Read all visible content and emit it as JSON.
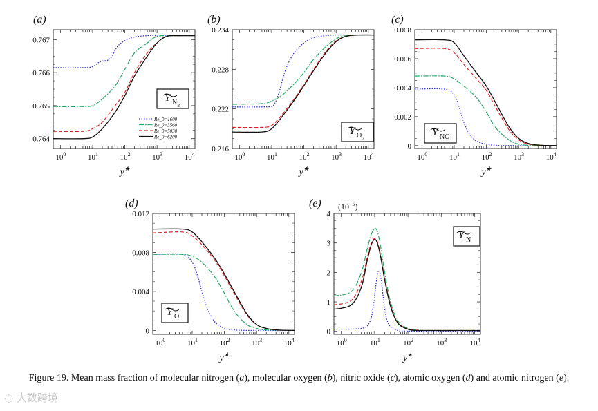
{
  "caption": {
    "prefix": "Figure 19.",
    "body_1": "Mean mass fraction of molecular nitrogen (",
    "a": "a",
    "body_2": "), molecular oxygen (",
    "b": "b",
    "body_3": "), nitric oxide (",
    "c": "c",
    "body_4": "), atomic oxygen (",
    "d": "d",
    "body_5": ") and atomic nitrogen (",
    "e": "e",
    "body_6": ")."
  },
  "watermark": "大数跨境",
  "colors": {
    "Re1600": "#3333dd",
    "Re3560": "#22aa66",
    "Re5030": "#dd2222",
    "Re6200": "#111111"
  },
  "chart_data": [
    {
      "id": "a",
      "panel_label": "(a)",
      "type": "line",
      "xscale": "log",
      "xlim": [
        0.6,
        15000
      ],
      "ylim": [
        0.7637,
        0.7673
      ],
      "xticks": [
        "10^0",
        "10^1",
        "10^2",
        "10^3",
        "10^4"
      ],
      "yticks": [
        0.764,
        0.765,
        0.766,
        0.767
      ],
      "ytick_labels": [
        "0.764",
        "0.765",
        "0.766",
        "0.767"
      ],
      "xlabel": "y*",
      "species_label": "Y_N2",
      "legend_entries": [
        "Re_0 = 1600",
        "Re_0 = 3560",
        "Re_0 = 5030",
        "Re_0 = 6200"
      ],
      "series": [
        {
          "name": "Re_0 = 1600",
          "style": "dotted",
          "x": [
            0.6,
            5,
            10,
            15,
            20,
            30,
            40,
            60,
            100,
            200,
            500,
            1000,
            15000
          ],
          "y": [
            0.76615,
            0.76615,
            0.76618,
            0.7663,
            0.76635,
            0.76638,
            0.7665,
            0.7668,
            0.76697,
            0.76708,
            0.76712,
            0.76712,
            0.76712
          ]
        },
        {
          "name": "Re_0 = 3560",
          "style": "dashdot",
          "x": [
            0.6,
            5,
            10,
            20,
            50,
            100,
            200,
            500,
            1000,
            3000,
            15000
          ],
          "y": [
            0.76497,
            0.76497,
            0.765,
            0.7652,
            0.7656,
            0.7661,
            0.7666,
            0.7669,
            0.7671,
            0.76712,
            0.76712
          ]
        },
        {
          "name": "Re_0 = 5030",
          "style": "dashed",
          "x": [
            0.6,
            5,
            10,
            20,
            50,
            100,
            200,
            500,
            1000,
            2000,
            5000,
            15000
          ],
          "y": [
            0.76422,
            0.76422,
            0.7643,
            0.7645,
            0.765,
            0.7654,
            0.766,
            0.7666,
            0.7669,
            0.7671,
            0.76712,
            0.76712
          ]
        },
        {
          "name": "Re_0 = 6200",
          "style": "solid",
          "x": [
            0.6,
            5,
            10,
            20,
            50,
            100,
            200,
            500,
            1000,
            2000,
            5000,
            15000
          ],
          "y": [
            0.764,
            0.764,
            0.76405,
            0.7643,
            0.7648,
            0.7653,
            0.7659,
            0.7665,
            0.7669,
            0.7671,
            0.76712,
            0.76712
          ]
        }
      ]
    },
    {
      "id": "b",
      "panel_label": "(b)",
      "type": "line",
      "xscale": "log",
      "xlim": [
        0.6,
        15000
      ],
      "ylim": [
        0.216,
        0.234
      ],
      "xticks": [
        "10^0",
        "10^1",
        "10^2",
        "10^3",
        "10^4"
      ],
      "yticks": [
        0.216,
        0.222,
        0.228,
        0.234
      ],
      "ytick_labels": [
        "0.216",
        "0.222",
        "0.228",
        "0.234"
      ],
      "xlabel": "y*",
      "species_label": "Y_O2",
      "series": [
        {
          "name": "Re_0 = 1600",
          "style": "dotted",
          "x": [
            0.6,
            5,
            10,
            13,
            17,
            22,
            30,
            50,
            100,
            200,
            500,
            1000,
            15000
          ],
          "y": [
            0.2223,
            0.2223,
            0.2224,
            0.223,
            0.2245,
            0.2265,
            0.2285,
            0.2305,
            0.232,
            0.2328,
            0.2331,
            0.2332,
            0.2332
          ]
        },
        {
          "name": "Re_0 = 3560",
          "style": "dashdot",
          "x": [
            0.6,
            5,
            10,
            20,
            50,
            100,
            200,
            500,
            1000,
            2000,
            15000
          ],
          "y": [
            0.2227,
            0.2228,
            0.2232,
            0.224,
            0.2258,
            0.2275,
            0.2295,
            0.2315,
            0.2326,
            0.2331,
            0.2332
          ]
        },
        {
          "name": "Re_0 = 5030",
          "style": "dashed",
          "x": [
            0.6,
            5,
            10,
            20,
            50,
            100,
            200,
            500,
            1000,
            2000,
            5000,
            15000
          ],
          "y": [
            0.2192,
            0.2192,
            0.2195,
            0.221,
            0.2235,
            0.2257,
            0.228,
            0.2308,
            0.2323,
            0.233,
            0.2332,
            0.2332
          ]
        },
        {
          "name": "Re_0 = 6200",
          "style": "solid",
          "x": [
            0.6,
            5,
            10,
            20,
            50,
            100,
            200,
            500,
            1000,
            2000,
            5000,
            15000
          ],
          "y": [
            0.2185,
            0.2185,
            0.219,
            0.2207,
            0.2233,
            0.2255,
            0.2278,
            0.2306,
            0.2322,
            0.233,
            0.2332,
            0.2332
          ]
        }
      ]
    },
    {
      "id": "c",
      "panel_label": "(c)",
      "type": "line",
      "xscale": "log",
      "xlim": [
        0.6,
        15000
      ],
      "ylim": [
        -0.0002,
        0.008
      ],
      "xticks": [
        "10^0",
        "10^1",
        "10^2",
        "10^3",
        "10^4"
      ],
      "yticks": [
        0,
        0.002,
        0.004,
        0.006,
        0.008
      ],
      "ytick_labels": [
        "0",
        "0.002",
        "0.004",
        "0.006",
        "0.008"
      ],
      "xlabel": "y*",
      "species_label": "Y_NO",
      "series": [
        {
          "name": "Re_0 = 1600",
          "style": "dotted",
          "x": [
            0.6,
            5,
            10,
            15,
            20,
            30,
            50,
            100,
            200,
            500,
            15000
          ],
          "y": [
            0.0039,
            0.0039,
            0.0035,
            0.0025,
            0.0016,
            0.0008,
            0.0003,
            8e-05,
            2e-05,
            0,
            0
          ]
        },
        {
          "name": "Re_0 = 3560",
          "style": "dashdot",
          "x": [
            0.6,
            5,
            10,
            20,
            50,
            100,
            200,
            500,
            1000,
            2000,
            15000
          ],
          "y": [
            0.0048,
            0.0048,
            0.0046,
            0.0041,
            0.0033,
            0.0023,
            0.0012,
            0.0004,
            0.0001,
            3e-05,
            0
          ]
        },
        {
          "name": "Re_0 = 5030",
          "style": "dashed",
          "x": [
            0.6,
            5,
            10,
            20,
            50,
            100,
            200,
            500,
            1000,
            2000,
            5000,
            15000
          ],
          "y": [
            0.0067,
            0.0067,
            0.0064,
            0.0056,
            0.0046,
            0.0038,
            0.0026,
            0.0011,
            0.0004,
            0.0001,
            2e-05,
            0
          ]
        },
        {
          "name": "Re_0 = 6200",
          "style": "solid",
          "x": [
            0.6,
            5,
            10,
            20,
            50,
            100,
            200,
            500,
            1000,
            2000,
            5000,
            15000
          ],
          "y": [
            0.0073,
            0.0073,
            0.0071,
            0.0062,
            0.005,
            0.0041,
            0.0029,
            0.0013,
            0.0005,
            0.00015,
            2e-05,
            0
          ]
        }
      ]
    },
    {
      "id": "d",
      "panel_label": "(d)",
      "type": "line",
      "xscale": "log",
      "xlim": [
        0.6,
        15000
      ],
      "ylim": [
        -0.0004,
        0.012
      ],
      "xticks": [
        "10^0",
        "10^1",
        "10^2",
        "10^3",
        "10^4"
      ],
      "yticks": [
        0,
        0.004,
        0.008,
        0.012
      ],
      "ytick_labels": [
        "0",
        "0.004",
        "0.008",
        "0.012"
      ],
      "xlabel": "y*",
      "species_label": "Y_O",
      "series": [
        {
          "name": "Re_0 = 1600",
          "style": "dotted",
          "x": [
            0.6,
            5,
            10,
            15,
            20,
            30,
            50,
            100,
            200,
            500,
            15000
          ],
          "y": [
            0.0078,
            0.0078,
            0.007,
            0.0055,
            0.004,
            0.0022,
            0.0009,
            0.0002,
            5e-05,
            0,
            0
          ]
        },
        {
          "name": "Re_0 = 3560",
          "style": "dashdot",
          "x": [
            0.6,
            5,
            10,
            20,
            50,
            100,
            200,
            500,
            1000,
            2000,
            15000
          ],
          "y": [
            0.0078,
            0.0078,
            0.0076,
            0.007,
            0.0055,
            0.0038,
            0.002,
            0.0006,
            0.0002,
            5e-05,
            0
          ]
        },
        {
          "name": "Re_0 = 5030",
          "style": "dashed",
          "x": [
            0.6,
            5,
            10,
            20,
            50,
            100,
            200,
            500,
            1000,
            2000,
            5000,
            15000
          ],
          "y": [
            0.01,
            0.0101,
            0.0097,
            0.0088,
            0.0072,
            0.0056,
            0.0038,
            0.0016,
            0.0006,
            0.0002,
            3e-05,
            0
          ]
        },
        {
          "name": "Re_0 = 6200",
          "style": "solid",
          "x": [
            0.6,
            5,
            10,
            20,
            50,
            100,
            200,
            500,
            1000,
            2000,
            5000,
            15000
          ],
          "y": [
            0.0104,
            0.0104,
            0.0101,
            0.0091,
            0.0074,
            0.0058,
            0.004,
            0.0017,
            0.0006,
            0.0002,
            3e-05,
            0
          ]
        }
      ]
    },
    {
      "id": "e",
      "panel_label": "(e)",
      "type": "line",
      "xscale": "log",
      "xlim": [
        0.6,
        15000
      ],
      "ylim": [
        -0.1,
        4
      ],
      "xticks": [
        "10^0",
        "10^1",
        "10^2",
        "10^3",
        "10^4"
      ],
      "yticks": [
        0,
        1,
        2,
        3,
        4
      ],
      "ytick_labels": [
        "0",
        "1",
        "2",
        "3",
        "4"
      ],
      "xlabel": "y*",
      "species_label": "Y_N",
      "multiplier": "(10^-5)",
      "series": [
        {
          "name": "Re_0 = 1600",
          "style": "dotted",
          "x": [
            0.6,
            4,
            7,
            9,
            11,
            13,
            15,
            18,
            22,
            30,
            50,
            100,
            15000
          ],
          "y": [
            0.07,
            0.1,
            0.3,
            0.8,
            1.6,
            2.05,
            1.9,
            1.2,
            0.5,
            0.15,
            0.03,
            0.01,
            0.01
          ]
        },
        {
          "name": "Re_0 = 3560",
          "style": "dashdot",
          "x": [
            0.6,
            2,
            4,
            6,
            8,
            10,
            12,
            15,
            20,
            30,
            50,
            100,
            200,
            500,
            15000
          ],
          "y": [
            1.2,
            1.35,
            2.0,
            2.8,
            3.3,
            3.48,
            3.4,
            2.9,
            2.0,
            1.0,
            0.35,
            0.1,
            0.04,
            0.03,
            0.03
          ]
        },
        {
          "name": "Re_0 = 5030",
          "style": "dashed",
          "x": [
            0.6,
            2,
            4,
            6,
            8,
            10,
            12,
            15,
            20,
            30,
            50,
            100,
            200,
            500,
            15000
          ],
          "y": [
            0.9,
            1.05,
            1.7,
            2.5,
            3.0,
            3.15,
            3.05,
            2.6,
            1.8,
            0.9,
            0.3,
            0.08,
            0.04,
            0.03,
            0.03
          ]
        },
        {
          "name": "Re_0 = 6200",
          "style": "solid",
          "x": [
            0.6,
            2,
            4,
            6,
            8,
            10,
            12,
            15,
            20,
            30,
            50,
            100,
            200,
            500,
            15000
          ],
          "y": [
            0.75,
            0.9,
            1.5,
            2.4,
            2.95,
            3.12,
            3.0,
            2.55,
            1.75,
            0.85,
            0.28,
            0.07,
            0.03,
            0.03,
            0.03
          ]
        }
      ]
    }
  ]
}
